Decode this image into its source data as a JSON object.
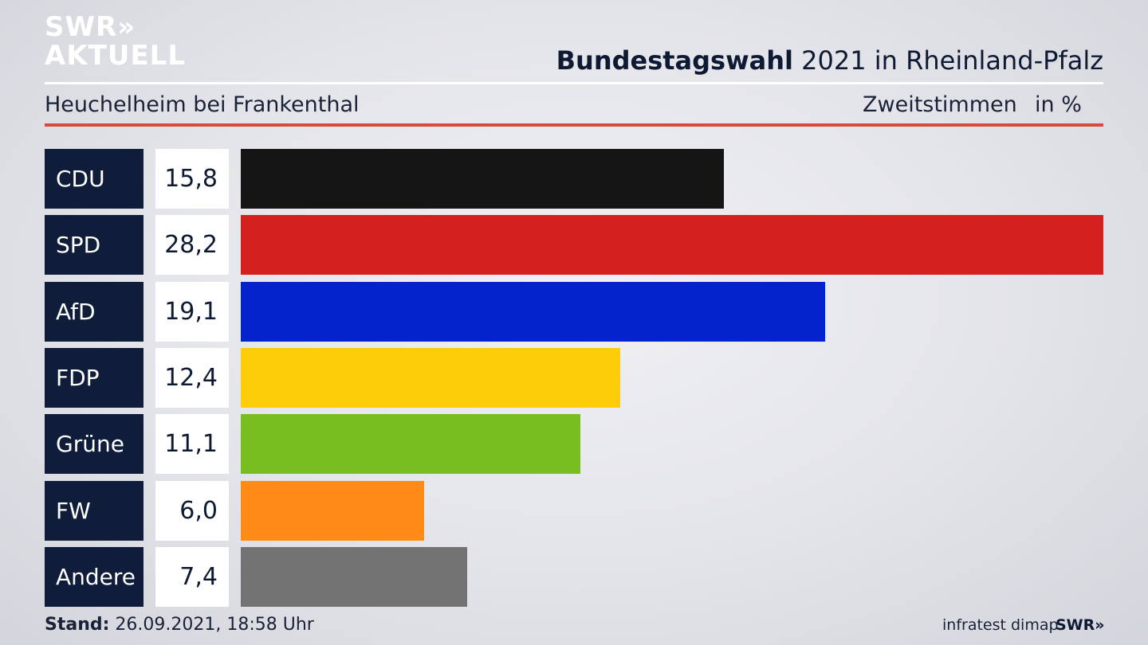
{
  "logo": {
    "line1": "SWR»",
    "line2": "AKTUELL"
  },
  "header": {
    "title_bold": "Bundestagswahl",
    "title_rest": " 2021 in Rheinland-Pfalz",
    "location": "Heuchelheim bei Frankenthal",
    "measure": "Zweitstimmen",
    "unit": "in %"
  },
  "footer": {
    "stand_label": "Stand:",
    "stand_value": " 26.09.2021, 18:58 Uhr",
    "source": "infratest dimap",
    "brand": "SWR»"
  },
  "colors": {
    "panel": "#0f1c3a",
    "accent_rule": "#d84a3e"
  },
  "chart_data": {
    "type": "bar",
    "orientation": "horizontal",
    "title": "Bundestagswahl 2021 in Rheinland-Pfalz",
    "subtitle": "Heuchelheim bei Frankenthal",
    "xlabel": "",
    "ylabel": "",
    "unit": "in %",
    "categories": [
      "CDU",
      "SPD",
      "AfD",
      "FDP",
      "Grüne",
      "FW",
      "Andere"
    ],
    "values": [
      15.8,
      28.2,
      19.1,
      12.4,
      11.1,
      6.0,
      7.4
    ],
    "value_labels": [
      "15,8",
      "28,2",
      "19,1",
      "12,4",
      "11,1",
      "6,0",
      "7,4"
    ],
    "colors": [
      "#151515",
      "#d52020",
      "#0423cc",
      "#fdcd0a",
      "#78be1f",
      "#ff8b17",
      "#727272"
    ],
    "xlim": [
      0,
      28.2
    ],
    "grid": false,
    "legend": "none"
  }
}
